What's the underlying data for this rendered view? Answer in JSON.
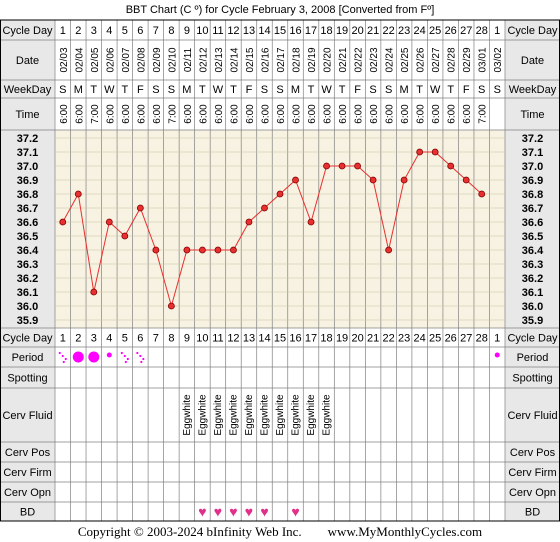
{
  "chart_data": {
    "type": "line",
    "title": "BBT Chart (C º) for Cycle February 3, 2008  [Converted from Fº]",
    "row_labels": {
      "cycle_day": "Cycle Day",
      "date": "Date",
      "weekday": "WeekDay",
      "time": "Time",
      "period": "Period",
      "spotting": "Spotting",
      "cerv_fluid": "Cerv Fluid",
      "cerv_pos": "Cerv Pos",
      "cerv_firm": "Cerv Firm",
      "cerv_opn": "Cerv Opn",
      "bd": "BD"
    },
    "cycle_days": [
      "1",
      "2",
      "3",
      "4",
      "5",
      "6",
      "7",
      "8",
      "9",
      "10",
      "11",
      "12",
      "13",
      "14",
      "15",
      "16",
      "17",
      "18",
      "19",
      "20",
      "21",
      "22",
      "23",
      "24",
      "25",
      "26",
      "27",
      "28",
      "1"
    ],
    "dates": [
      "02/03",
      "02/04",
      "02/05",
      "02/06",
      "02/07",
      "02/08",
      "02/09",
      "02/10",
      "02/11",
      "02/12",
      "02/13",
      "02/14",
      "02/15",
      "02/16",
      "02/17",
      "02/18",
      "02/19",
      "02/20",
      "02/21",
      "02/22",
      "02/23",
      "02/24",
      "02/25",
      "02/26",
      "02/27",
      "02/28",
      "02/29",
      "03/01",
      "03/02"
    ],
    "weekdays": [
      "S",
      "M",
      "T",
      "W",
      "T",
      "F",
      "S",
      "S",
      "M",
      "T",
      "W",
      "T",
      "F",
      "S",
      "S",
      "M",
      "T",
      "W",
      "T",
      "F",
      "S",
      "S",
      "M",
      "T",
      "W",
      "T",
      "F",
      "S",
      "S"
    ],
    "times": [
      "6:00",
      "6:00",
      "7:00",
      "6:00",
      "6:00",
      "6:00",
      "6:00",
      "7:00",
      "6:00",
      "6:00",
      "6:00",
      "6:00",
      "6:00",
      "6:00",
      "6:00",
      "6:00",
      "6:00",
      "6:00",
      "6:00",
      "6:00",
      "6:00",
      "6:00",
      "6:00",
      "6:00",
      "6:00",
      "6:00",
      "6:00",
      "7:00",
      ""
    ],
    "y_ticks": [
      "37.2",
      "37.1",
      "37.0",
      "36.9",
      "36.8",
      "36.7",
      "36.6",
      "36.5",
      "36.4",
      "36.3",
      "36.2",
      "36.1",
      "36.0",
      "35.9"
    ],
    "ylim": [
      35.9,
      37.2
    ],
    "temps": [
      36.6,
      36.8,
      36.1,
      36.6,
      36.5,
      36.7,
      36.4,
      36.0,
      36.4,
      36.4,
      36.4,
      36.4,
      36.6,
      36.7,
      36.8,
      36.9,
      36.6,
      37.0,
      37.0,
      37.0,
      36.9,
      36.4,
      36.9,
      37.1,
      37.1,
      37.0,
      36.9,
      36.8,
      null
    ],
    "period": [
      2,
      3,
      3,
      1,
      2,
      2,
      0,
      0,
      0,
      0,
      0,
      0,
      0,
      0,
      0,
      0,
      0,
      0,
      0,
      0,
      0,
      0,
      0,
      0,
      0,
      0,
      0,
      0,
      1
    ],
    "cerv_fluid": [
      "",
      "",
      "",
      "",
      "",
      "",
      "",
      "",
      "Eggwhite",
      "Eggwhite",
      "Eggwhite",
      "Eggwhite",
      "Eggwhite",
      "Eggwhite",
      "Eggwhite",
      "Eggwhite",
      "Eggwhite",
      "Eggwhite",
      "",
      "",
      "",
      "",
      "",
      "",
      "",
      "",
      "",
      "",
      ""
    ],
    "bd": [
      0,
      0,
      0,
      0,
      0,
      0,
      0,
      0,
      0,
      1,
      1,
      1,
      1,
      1,
      0,
      1,
      0,
      0,
      0,
      0,
      0,
      0,
      0,
      0,
      0,
      0,
      0,
      0,
      0
    ],
    "bd_symbol": "♥",
    "colors": {
      "grid_bg": "#f7f2e1",
      "label_bg": "#e8e8e8",
      "line": "#e83030",
      "marker_fill": "#e83030",
      "period": "#ff00ff",
      "bd": "#e0308a",
      "chart_border": "#000000"
    }
  },
  "footer": {
    "copyright": "Copyright © 2003-2024 bInfinity Web Inc.",
    "site": "www.MyMonthlyCycles.com"
  }
}
